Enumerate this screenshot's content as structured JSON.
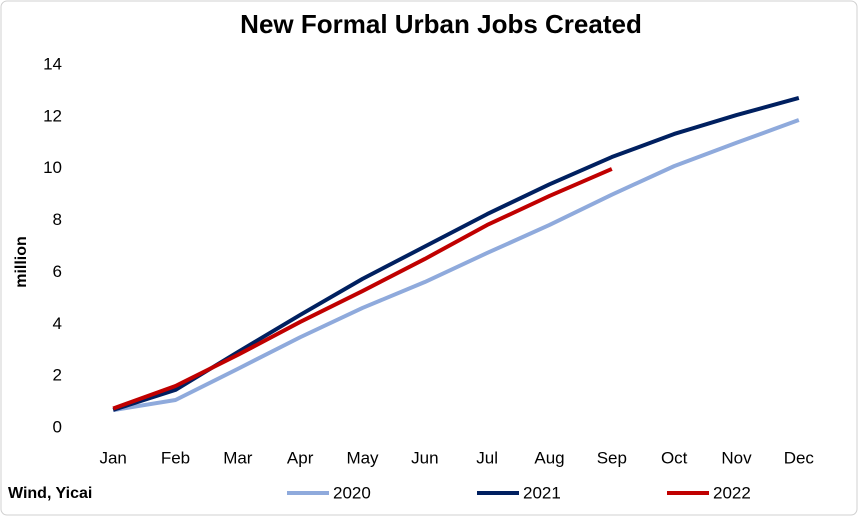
{
  "chart_data": {
    "type": "line",
    "title": "New Formal Urban Jobs Created",
    "y_label": "million",
    "source": "Wind, Yicai",
    "categories": [
      "Jan",
      "Feb",
      "Mar",
      "Apr",
      "May",
      "Jun",
      "Jul",
      "Aug",
      "Sep",
      "Oct",
      "Nov",
      "Dec"
    ],
    "series": [
      {
        "name": "2020",
        "color": "#8faadc",
        "values": [
          0.69,
          1.08,
          2.28,
          3.5,
          4.63,
          5.63,
          6.75,
          7.83,
          9.0,
          10.1,
          11.0,
          11.88
        ]
      },
      {
        "name": "2021",
        "color": "#002060",
        "values": [
          0.7,
          1.47,
          2.93,
          4.36,
          5.75,
          7.0,
          8.25,
          9.4,
          10.45,
          11.34,
          12.07,
          12.73
        ]
      },
      {
        "name": "2022",
        "color": "#c00000",
        "values": [
          0.75,
          1.62,
          2.82,
          4.09,
          5.28,
          6.52,
          7.83,
          8.95,
          9.99,
          null,
          null,
          null
        ]
      }
    ],
    "ylim": [
      0,
      14
    ],
    "yticks": [
      0,
      2,
      4,
      6,
      8,
      10,
      12,
      14
    ],
    "grid": false,
    "legend": "bottom"
  }
}
